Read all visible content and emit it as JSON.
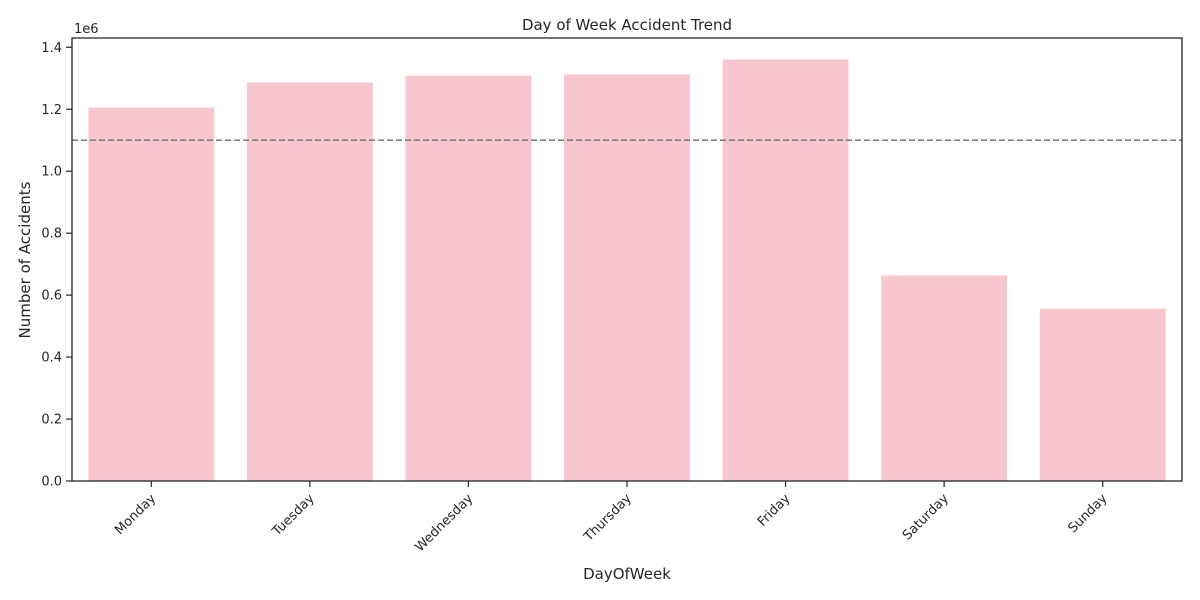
{
  "chart_data": {
    "type": "bar",
    "title": "Day of Week Accident Trend",
    "xlabel": "DayOfWeek",
    "ylabel": "Number of Accidents",
    "y_offset_label": "1e6",
    "categories": [
      "Monday",
      "Tuesday",
      "Wednesday",
      "Thursday",
      "Friday",
      "Saturday",
      "Sunday"
    ],
    "values": [
      1207000,
      1288000,
      1310000,
      1314000,
      1362000,
      665000,
      558000
    ],
    "ylim": [
      0,
      1430000
    ],
    "yticks": [
      0,
      200000,
      400000,
      600000,
      800000,
      1000000,
      1200000,
      1400000
    ],
    "ytick_labels": [
      "0.0",
      "0.2",
      "0.4",
      "0.6",
      "0.8",
      "1.0",
      "1.2",
      "1.4"
    ],
    "reference_line": {
      "value": 1100000,
      "style": "dashed",
      "color": "#808080"
    },
    "bar_color": "#f7c6cf",
    "bar_edge_color": "#ffffff",
    "grid": false,
    "xtick_rotation": 45
  }
}
